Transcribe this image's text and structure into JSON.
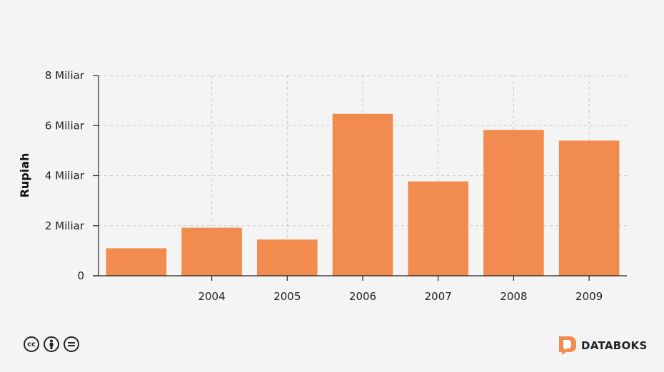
{
  "chart_data": {
    "type": "bar",
    "categories": [
      "",
      "2004",
      "2005",
      "2006",
      "2007",
      "2008",
      "2009"
    ],
    "values": [
      1.1,
      1.92,
      1.45,
      6.47,
      3.77,
      5.83,
      5.4
    ],
    "ylabel": "Rupiah",
    "ylim": [
      0,
      8
    ],
    "yticks": [
      0,
      2,
      4,
      6,
      8
    ],
    "ytick_labels": [
      "0",
      "2 Miliar",
      "4 Miliar",
      "6 Miliar",
      "8 Miliar"
    ],
    "bar_color": "#f28b4e",
    "grid": true
  },
  "footer": {
    "license_icons": [
      "cc-icon",
      "by-icon",
      "nd-icon"
    ],
    "brand_name": "DATABOKS",
    "brand_color": "#f28b4e"
  }
}
